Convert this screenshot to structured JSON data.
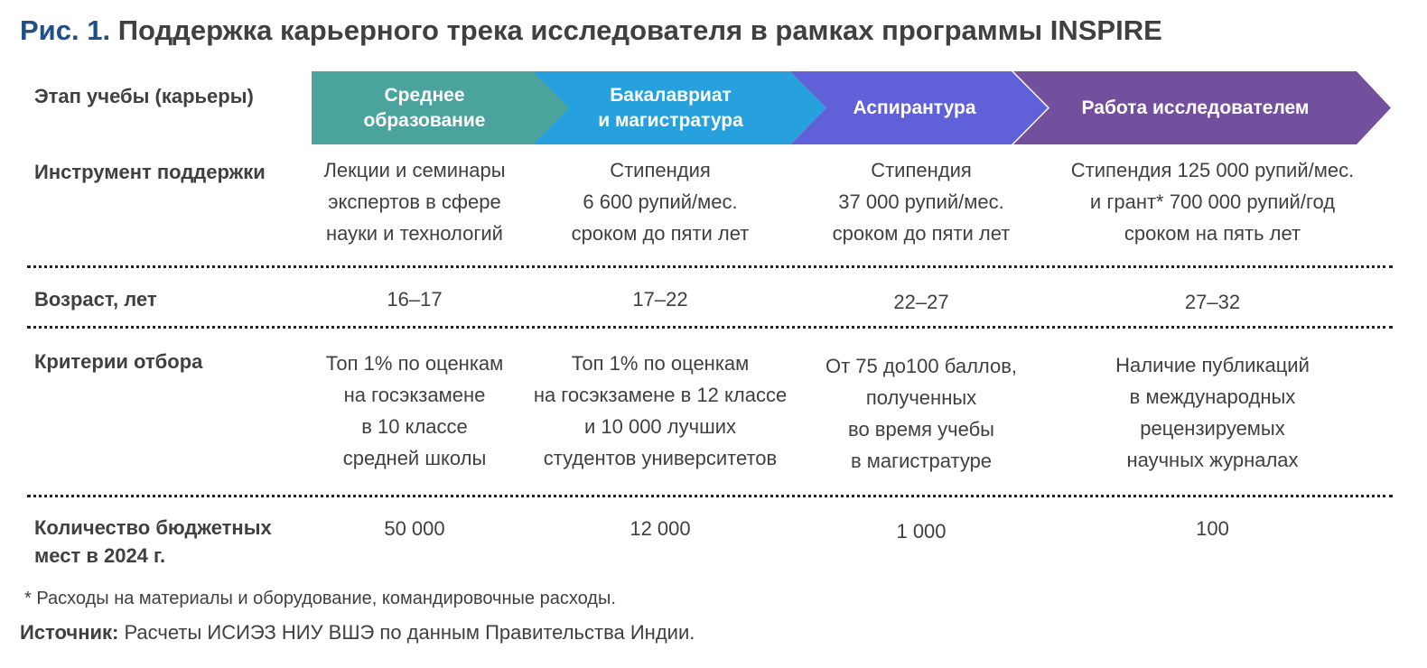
{
  "title": {
    "figure": "Рис. 1.",
    "text": "Поддержка карьерного трека исследователя в рамках программы INSPIRE"
  },
  "row_labels": {
    "stage": "Этап учебы (карьеры)",
    "tool": "Инструмент поддержки",
    "age": "Возраст, лет",
    "criteria": "Критерии отбора",
    "places_1": "Количество бюджетных",
    "places_2": "мест в 2024 г."
  },
  "stages": [
    {
      "line1": "Среднее",
      "line2": "образование",
      "color": "#4aa39c"
    },
    {
      "line1": "Бакалавриат",
      "line2": "и магистратура",
      "color": "#26a1dd"
    },
    {
      "line1": "Аспирантура",
      "line2": "",
      "color": "#6060d8"
    },
    {
      "line1": "Работа исследователем",
      "line2": "",
      "color": "#73509d"
    }
  ],
  "tools": [
    [
      "Лекции и семинары",
      "экспертов в сфере",
      "науки и технологий"
    ],
    [
      "Стипендия",
      "6 600 рупий/мес.",
      "сроком до пяти лет"
    ],
    [
      "Стипендия",
      "37 000 рупий/мес.",
      "сроком до пяти лет"
    ],
    [
      "Стипендия 125 000 рупий/мес.",
      "и грант* 700 000 рупий/год",
      "сроком на пять лет"
    ]
  ],
  "ages": [
    "16–17",
    "17–22",
    "22–27",
    "27–32"
  ],
  "criteria": [
    [
      "Топ 1% по оценкам",
      "на госэкзамене",
      "в 10 классе",
      "средней школы"
    ],
    [
      "Топ 1% по оценкам",
      "на госэкзамене в 12 классе",
      "и 10 000 лучших",
      "студентов университетов"
    ],
    [
      "От 75 до100 баллов,",
      "полученных",
      "во время учебы",
      "в магистратуре"
    ],
    [
      "Наличие публикаций",
      "в международных",
      "рецензируемых",
      "научных журналах"
    ]
  ],
  "places": [
    "50 000",
    "12 000",
    "1 000",
    "100"
  ],
  "footnote": "* Расходы на материалы и оборудование, командировочные расходы.",
  "source": {
    "label": "Источник:",
    "text": "Расчеты ИСИЭЗ НИУ ВШЭ по данным Правительства Индии."
  }
}
